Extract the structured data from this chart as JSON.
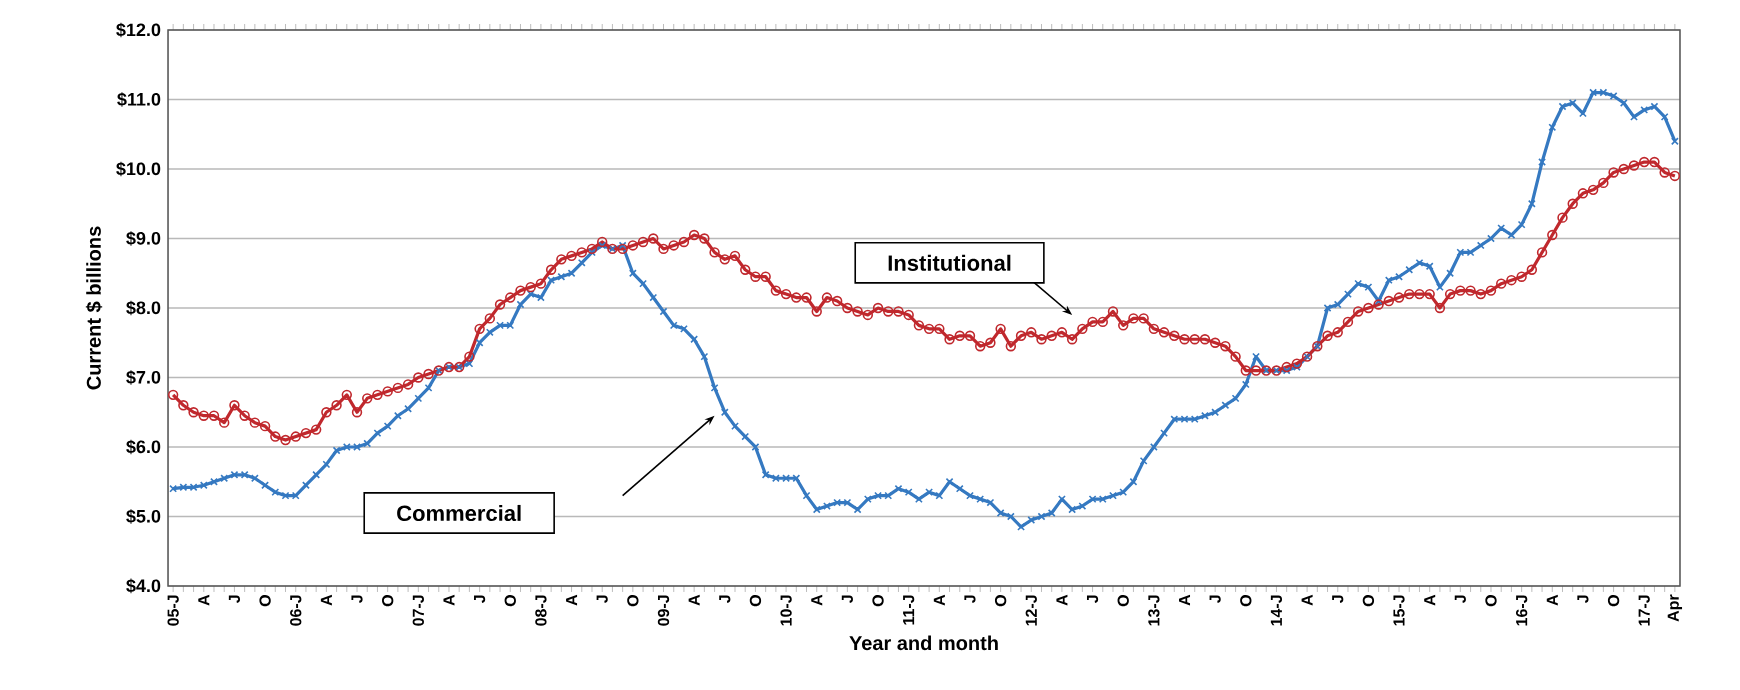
{
  "chart_data": {
    "type": "line",
    "xlabel": "Year and month",
    "ylabel": "Current $ billions",
    "categories": [
      "05-J",
      null,
      null,
      "A",
      null,
      null,
      "J",
      null,
      null,
      "O",
      null,
      null,
      "06-J",
      null,
      null,
      "A",
      null,
      null,
      "J",
      null,
      null,
      "O",
      null,
      null,
      "07-J",
      null,
      null,
      "A",
      null,
      null,
      "J",
      null,
      null,
      "O",
      null,
      null,
      "08-J",
      null,
      null,
      "A",
      null,
      null,
      "J",
      null,
      null,
      "O",
      null,
      null,
      "09-J",
      null,
      null,
      "A",
      null,
      null,
      "J",
      null,
      null,
      "O",
      null,
      null,
      "10-J",
      null,
      null,
      "A",
      null,
      null,
      "J",
      null,
      null,
      "O",
      null,
      null,
      "11-J",
      null,
      null,
      "A",
      null,
      null,
      "J",
      null,
      null,
      "O",
      null,
      null,
      "12-J",
      null,
      null,
      "A",
      null,
      null,
      "J",
      null,
      null,
      "O",
      null,
      null,
      "13-J",
      null,
      null,
      "A",
      null,
      null,
      "J",
      null,
      null,
      "O",
      null,
      null,
      "14-J",
      null,
      null,
      "A",
      null,
      null,
      "J",
      null,
      null,
      "O",
      null,
      null,
      "15-J",
      null,
      null,
      "A",
      null,
      null,
      "J",
      null,
      null,
      "O",
      null,
      null,
      "16-J",
      null,
      null,
      "A",
      null,
      null,
      "J",
      null,
      null,
      "O",
      null,
      null,
      "17-J",
      null,
      null,
      "Apr"
    ],
    "series": [
      {
        "name": "Commercial",
        "color": "#3579c1",
        "marker": "cross",
        "values": [
          5.4,
          5.42,
          5.42,
          5.45,
          5.5,
          5.55,
          5.6,
          5.6,
          5.55,
          5.45,
          5.35,
          5.3,
          5.3,
          5.45,
          5.6,
          5.75,
          5.95,
          6.0,
          6.0,
          6.05,
          6.2,
          6.3,
          6.45,
          6.55,
          6.7,
          6.85,
          7.1,
          7.15,
          7.15,
          7.2,
          7.5,
          7.65,
          7.75,
          7.75,
          8.05,
          8.2,
          8.15,
          8.4,
          8.45,
          8.5,
          8.65,
          8.8,
          8.9,
          8.85,
          8.9,
          8.5,
          8.35,
          8.15,
          7.95,
          7.75,
          7.7,
          7.55,
          7.3,
          6.85,
          6.5,
          6.3,
          6.15,
          6.0,
          5.6,
          5.55,
          5.55,
          5.55,
          5.3,
          5.1,
          5.15,
          5.2,
          5.2,
          5.1,
          5.25,
          5.3,
          5.3,
          5.4,
          5.35,
          5.25,
          5.35,
          5.3,
          5.5,
          5.4,
          5.3,
          5.25,
          5.2,
          5.05,
          5.0,
          4.85,
          4.95,
          5.0,
          5.05,
          5.25,
          5.1,
          5.15,
          5.25,
          5.25,
          5.3,
          5.35,
          5.5,
          5.8,
          6.0,
          6.2,
          6.4,
          6.4,
          6.4,
          6.45,
          6.5,
          6.6,
          6.7,
          6.9,
          7.3,
          7.1,
          7.1,
          7.1,
          7.15,
          7.3,
          7.45,
          8.0,
          8.05,
          8.2,
          8.35,
          8.3,
          8.1,
          8.4,
          8.45,
          8.55,
          8.65,
          8.6,
          8.3,
          8.5,
          8.8,
          8.8,
          8.9,
          9.0,
          9.15,
          9.05,
          9.2,
          9.5,
          10.1,
          10.6,
          10.9,
          10.95,
          10.8,
          11.1,
          11.1,
          11.05,
          10.95,
          10.75,
          10.85,
          10.9,
          10.75,
          10.4
        ]
      },
      {
        "name": "Institutional",
        "color": "#c0282d",
        "marker": "circle",
        "values": [
          6.75,
          6.6,
          6.5,
          6.45,
          6.45,
          6.35,
          6.6,
          6.45,
          6.35,
          6.3,
          6.15,
          6.1,
          6.15,
          6.2,
          6.25,
          6.5,
          6.6,
          6.75,
          6.5,
          6.7,
          6.75,
          6.8,
          6.85,
          6.9,
          7.0,
          7.05,
          7.1,
          7.15,
          7.15,
          7.3,
          7.7,
          7.85,
          8.05,
          8.15,
          8.25,
          8.3,
          8.35,
          8.55,
          8.7,
          8.75,
          8.8,
          8.85,
          8.95,
          8.85,
          8.85,
          8.9,
          8.95,
          9.0,
          8.85,
          8.9,
          8.95,
          9.05,
          9.0,
          8.8,
          8.7,
          8.75,
          8.55,
          8.45,
          8.45,
          8.25,
          8.2,
          8.15,
          8.15,
          7.95,
          8.15,
          8.1,
          8.0,
          7.95,
          7.9,
          8.0,
          7.95,
          7.95,
          7.9,
          7.75,
          7.7,
          7.7,
          7.55,
          7.6,
          7.6,
          7.45,
          7.5,
          7.7,
          7.45,
          7.6,
          7.65,
          7.55,
          7.6,
          7.65,
          7.55,
          7.7,
          7.8,
          7.8,
          7.95,
          7.75,
          7.85,
          7.85,
          7.7,
          7.65,
          7.6,
          7.55,
          7.55,
          7.55,
          7.5,
          7.45,
          7.3,
          7.1,
          7.1,
          7.1,
          7.1,
          7.15,
          7.2,
          7.3,
          7.45,
          7.6,
          7.65,
          7.8,
          7.95,
          8.0,
          8.05,
          8.1,
          8.15,
          8.2,
          8.2,
          8.2,
          8.0,
          8.2,
          8.25,
          8.25,
          8.2,
          8.25,
          8.35,
          8.4,
          8.45,
          8.55,
          8.8,
          9.05,
          9.3,
          9.5,
          9.65,
          9.7,
          9.8,
          9.95,
          10.0,
          10.05,
          10.1,
          10.1,
          9.95,
          9.9
        ]
      }
    ],
    "ylim": [
      4,
      12
    ],
    "yticks": [
      {
        "value": 4,
        "label": "$4.0"
      },
      {
        "value": 5,
        "label": "$5.0"
      },
      {
        "value": 6,
        "label": "$6.0"
      },
      {
        "value": 7,
        "label": "$7.0"
      },
      {
        "value": 8,
        "label": "$8.0"
      },
      {
        "value": 9,
        "label": "$9.0"
      },
      {
        "value": 10,
        "label": "$10.0"
      },
      {
        "value": 11,
        "label": "$11.0"
      },
      {
        "value": 12,
        "label": "$12.0"
      }
    ],
    "grid": "y",
    "legend": false
  }
}
